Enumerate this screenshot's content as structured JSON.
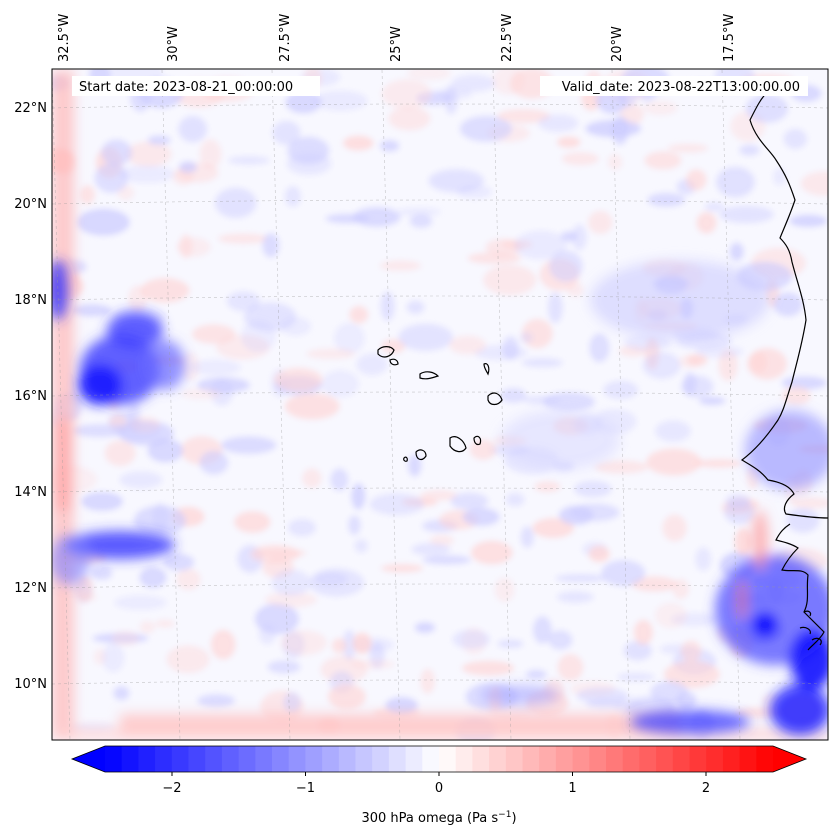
{
  "chart_data": {
    "type": "heatmap",
    "title": "",
    "info": {
      "start_date": "Start date: 2023-08-21_00:00:00",
      "valid_date": "Valid_date: 2023-08-22T13:00:00.00"
    },
    "lon_ticks": [
      "32.5°W",
      "30°W",
      "27.5°W",
      "25°W",
      "22.5°W",
      "20°W",
      "17.5°W"
    ],
    "lon_values": [
      -32.5,
      -30,
      -27.5,
      -25,
      -22.5,
      -20,
      -17.5
    ],
    "lat_ticks": [
      "22°N",
      "20°N",
      "18°N",
      "16°N",
      "14°N",
      "12°N",
      "10°N"
    ],
    "lat_values": [
      22,
      20,
      18,
      16,
      14,
      12,
      10
    ],
    "extent": {
      "lon": [
        -32.5,
        -15.0
      ],
      "lat": [
        8.9,
        22.8
      ]
    },
    "grid": true,
    "colormap": "bwr",
    "colorbar": {
      "label": "300 hPa omega (Pa s",
      "label_sup": "−1",
      "label_end": ")",
      "ticks": [
        "−2",
        "−1",
        "0",
        "1",
        "2"
      ],
      "tick_values": [
        -2,
        -1,
        0,
        1,
        2
      ],
      "range": [
        -2.5,
        2.5
      ],
      "extend": "both",
      "colors": {
        "min": "#0000ff",
        "mid": "#ffffff",
        "max": "#ff0000"
      }
    },
    "features": [
      {
        "name": "strong ascent west",
        "lon": -30.5,
        "lat": 16.3,
        "value": -2.2
      },
      {
        "name": "ascent northwest",
        "lon": -29.8,
        "lat": 17.3,
        "value": -1.8
      },
      {
        "name": "ascent west band",
        "lon": -29.5,
        "lat": 12.8,
        "value": -1.9
      },
      {
        "name": "ascent west edge",
        "lon": -32.4,
        "lat": 18.0,
        "value": -1.6
      },
      {
        "name": "ascent southeast",
        "lon": -16.0,
        "lat": 11.0,
        "value": -2.3
      },
      {
        "name": "ascent southeast coast",
        "lon": -15.3,
        "lat": 10.0,
        "value": -2.4
      },
      {
        "name": "ascent south",
        "lon": -18.0,
        "lat": 9.3,
        "value": -1.7
      },
      {
        "name": "subsidence south boundary",
        "lon": -23.0,
        "lat": 9.1,
        "value": 1.2
      },
      {
        "name": "subsidence west boundary",
        "lon": -32.2,
        "lat": 14.5,
        "value": 0.9
      }
    ]
  }
}
